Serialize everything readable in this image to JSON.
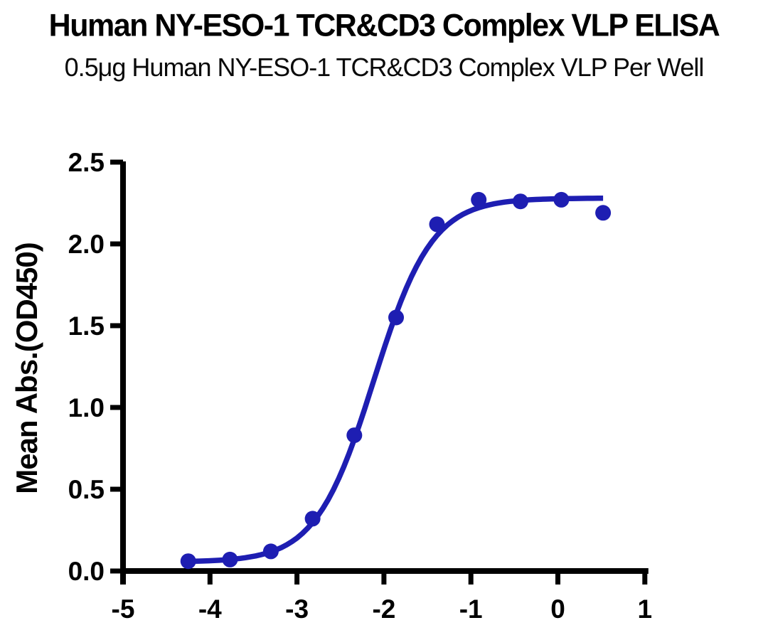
{
  "chart_data": {
    "type": "scatter",
    "title": "Human NY-ESO-1 TCR&CD3 Complex VLP ELISA",
    "subtitle": "0.5μg Human NY-ESO-1 TCR&CD3 Complex VLP Per Well",
    "xlabel": "",
    "ylabel": "Mean Abs.(OD450)",
    "xlim": [
      -5,
      1
    ],
    "ylim": [
      0.0,
      2.5
    ],
    "x_ticks": [
      -5,
      -4,
      -3,
      -2,
      -1,
      0,
      1
    ],
    "x_tick_labels": [
      "-5",
      "-4",
      "-3",
      "-2",
      "-1",
      "0",
      "1"
    ],
    "y_ticks": [
      0.0,
      0.5,
      1.0,
      1.5,
      2.0,
      2.5
    ],
    "y_tick_labels": [
      "0.0",
      "0.5",
      "1.0",
      "1.5",
      "2.0",
      "2.5"
    ],
    "grid": false,
    "legend_position": "none",
    "series": [
      {
        "name": "Human NY-ESO-1 TCR&CD3 Complex VLP",
        "x": [
          -4.25,
          -3.77,
          -3.3,
          -2.82,
          -2.34,
          -1.86,
          -1.39,
          -0.91,
          -0.43,
          0.04,
          0.52
        ],
        "y": [
          0.06,
          0.07,
          0.12,
          0.32,
          0.83,
          1.55,
          2.12,
          2.27,
          2.26,
          2.27,
          2.19
        ]
      }
    ],
    "fit_curve": {
      "model": "four_parameter_logistic",
      "bottom": 0.055,
      "top": 2.28,
      "logEC50": -2.115,
      "hill_slope": 1.3,
      "x_range": [
        -4.25,
        0.52
      ]
    },
    "colors": {
      "points": "#1E1EB2",
      "curve": "#1E1EB2",
      "axis": "#000000",
      "text": "#000000",
      "background": "#FFFFFF"
    }
  }
}
